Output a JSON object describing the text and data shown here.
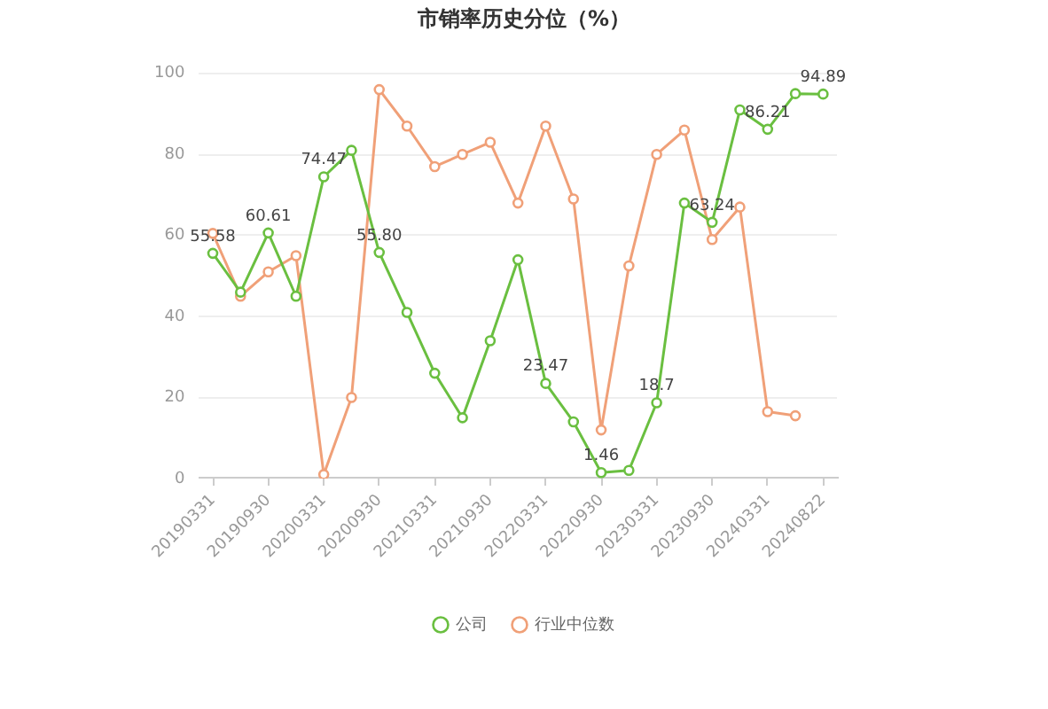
{
  "chart_data": {
    "type": "line",
    "title": "市销率历史分位（%）",
    "categories": [
      "20190331",
      null,
      "20190930",
      null,
      "20200331",
      null,
      "20200930",
      null,
      "20210331",
      null,
      "20210930",
      null,
      "20220331",
      null,
      "20220930",
      null,
      "20230331",
      null,
      "20230930",
      null,
      "20240331",
      null,
      "20240822"
    ],
    "series": [
      {
        "name": "公司",
        "color": "#6abf40",
        "values": [
          55.58,
          46,
          60.61,
          45,
          74.47,
          81,
          55.8,
          41,
          26,
          15,
          34,
          54,
          23.47,
          14,
          1.46,
          2,
          18.7,
          68,
          63.24,
          91,
          86.21,
          95,
          94.89
        ],
        "value_labels": [
          "55.58",
          null,
          "60.61",
          null,
          "74.47",
          null,
          "55.80",
          null,
          null,
          null,
          null,
          null,
          "23.47",
          null,
          "1.46",
          null,
          "18.7",
          null,
          "63.24",
          null,
          "86.21",
          null,
          "94.89"
        ]
      },
      {
        "name": "行业中位数",
        "color": "#f0a078",
        "values": [
          60.5,
          45,
          51,
          55,
          1,
          20,
          96,
          87,
          77,
          80,
          83,
          68,
          87,
          69,
          12,
          52.5,
          80,
          86,
          59,
          67,
          16.5,
          15.5,
          null
        ]
      }
    ],
    "ylim": [
      0,
      100
    ],
    "yticks": [
      0,
      20,
      40,
      60,
      80,
      100
    ],
    "grid": "y",
    "legend": "bottom",
    "marker": "circle",
    "line_style": "solid"
  }
}
